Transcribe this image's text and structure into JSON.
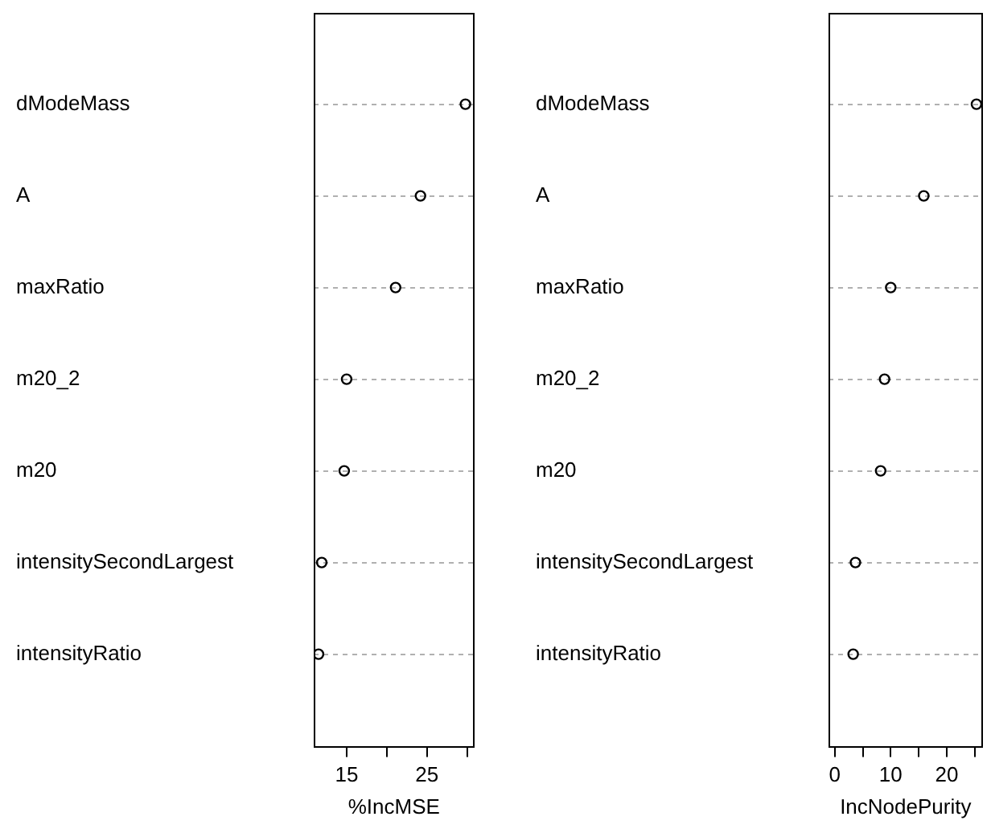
{
  "chart_data": [
    {
      "type": "scatter",
      "orientation": "horizontal",
      "categories": [
        "dModeMass",
        "A",
        "maxRatio",
        "m20_2",
        "m20",
        "intensitySecondLargest",
        "intensityRatio"
      ],
      "values": [
        29.8,
        24.2,
        21.1,
        15.0,
        14.7,
        11.9,
        11.5
      ],
      "color": "#000000",
      "marker": "circle",
      "xlabel": "%IncMSE",
      "xlim": [
        10.9,
        30.9
      ],
      "xticks": [
        15,
        {
          "value": 20,
          "label": null
        },
        25,
        {
          "value": 30,
          "label": null
        }
      ],
      "grid": "y",
      "legend": false
    },
    {
      "type": "scatter",
      "orientation": "horizontal",
      "categories": [
        "dModeMass",
        "A",
        "maxRatio",
        "m20_2",
        "m20",
        "intensitySecondLargest",
        "intensityRatio"
      ],
      "values": [
        25.3,
        15.9,
        10.0,
        8.9,
        8.2,
        3.7,
        3.3
      ],
      "color": "#000000",
      "marker": "circle",
      "xlabel": "IncNodePurity",
      "xlim": [
        -1.1,
        26.4
      ],
      "xticks": [
        0,
        {
          "value": 5,
          "label": null
        },
        10,
        {
          "value": 15,
          "label": null
        },
        20,
        {
          "value": 25,
          "label": null
        }
      ],
      "grid": "y",
      "legend": false
    }
  ]
}
